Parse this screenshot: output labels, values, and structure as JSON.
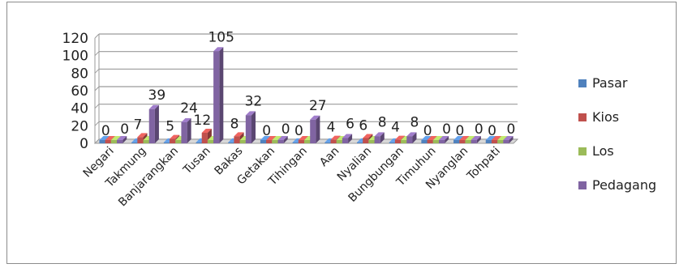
{
  "chart_data": {
    "type": "bar",
    "title": "",
    "xlabel": "",
    "ylabel": "",
    "ylim": [
      0,
      120
    ],
    "yticks": [
      0,
      20,
      40,
      60,
      80,
      100,
      120
    ],
    "grid": true,
    "legend_position": "right",
    "categories": [
      "Negari",
      "Takmung",
      "Banjarangkan",
      "Tusan",
      "Bakas",
      "Getakan",
      "Tihingan",
      "Aan",
      "Nyalian",
      "Bungbungan",
      "Timuhun",
      "Nyanglan",
      "Tohpati"
    ],
    "series": [
      {
        "name": "Pasar",
        "color": "#4f81bd",
        "values": [
          0,
          1,
          1,
          1,
          1,
          0,
          1,
          1,
          1,
          1,
          0,
          0,
          0
        ]
      },
      {
        "name": "Kios",
        "color": "#c0504d",
        "values": [
          0,
          7,
          5,
          12,
          8,
          0,
          0,
          4,
          6,
          4,
          0,
          0,
          0
        ]
      },
      {
        "name": "Los",
        "color": "#9bbb59",
        "values": [
          0,
          0,
          0,
          0,
          0,
          0,
          0,
          0,
          0,
          0,
          0,
          0,
          0
        ]
      },
      {
        "name": "Pedagang",
        "color": "#8064a2",
        "values": [
          0,
          39,
          24,
          105,
          32,
          0,
          27,
          6,
          8,
          8,
          0,
          0,
          0
        ]
      }
    ],
    "data_labels": [
      "0",
      "0",
      "7",
      "39",
      "5",
      "24",
      "12",
      "105",
      "8",
      "32",
      "0",
      "0",
      "0",
      "27",
      "4",
      "6",
      "6",
      "8",
      "4",
      "8",
      "0",
      "0",
      "0",
      "0",
      "0",
      "0"
    ]
  }
}
